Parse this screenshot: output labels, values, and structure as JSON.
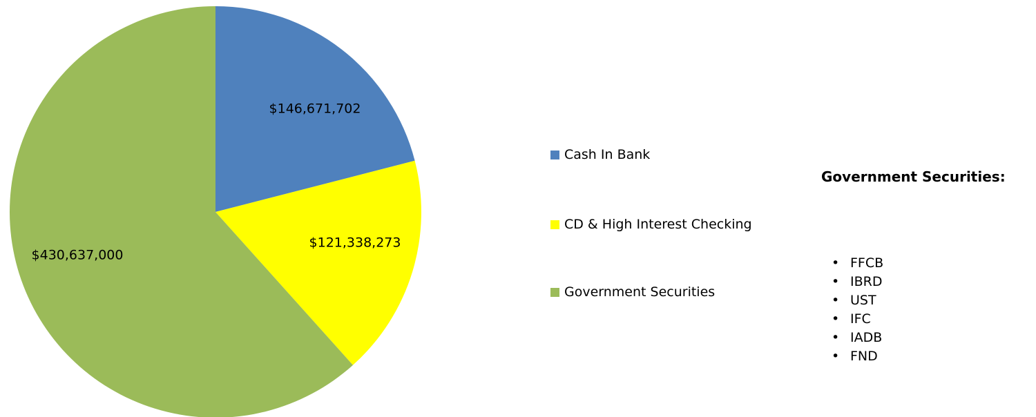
{
  "chart_data": {
    "type": "pie",
    "title": "",
    "slices": [
      {
        "label": "Cash In Bank",
        "value": 146671702,
        "display": "$146,671,702",
        "color": "#4F81BD"
      },
      {
        "label": "CD & High Interest Checking",
        "value": 121338273,
        "display": "$121,338,273",
        "color": "#FFFF00"
      },
      {
        "label": "Government Securities",
        "value": 430637000,
        "display": "$430,637,000",
        "color": "#9BBB59"
      }
    ],
    "legend_position": "right"
  },
  "legend": {
    "items": [
      {
        "label": "Cash In Bank",
        "color": "#4F81BD"
      },
      {
        "label": "CD & High Interest Checking",
        "color": "#FFFF00"
      },
      {
        "label": "Government Securities",
        "color": "#9BBB59"
      }
    ]
  },
  "securities": {
    "title": "Government Securities:",
    "items": [
      "FFCB",
      "IBRD",
      "UST",
      "IFC",
      "IADB",
      "FND"
    ],
    "bullet": "•"
  }
}
